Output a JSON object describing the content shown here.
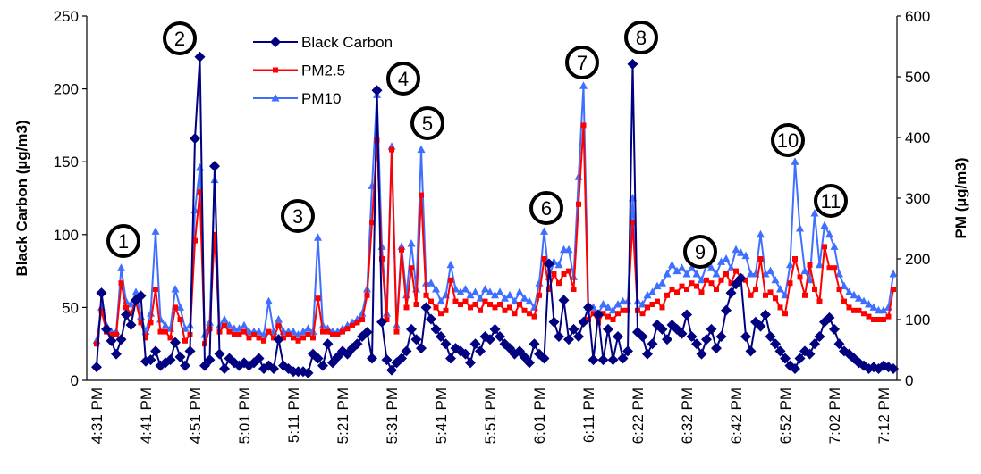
{
  "chart_data": {
    "type": "line",
    "y_label": "Black Carbon (µg/m3)",
    "y2_label": "PM (µg/m3)",
    "ylim": [
      0,
      250
    ],
    "yticks": [
      0,
      50,
      100,
      150,
      200,
      250
    ],
    "y2lim": [
      0,
      600
    ],
    "y2ticks": [
      0,
      100,
      200,
      300,
      400,
      500,
      600
    ],
    "legend": "top-center",
    "annotations": [
      "1",
      "2",
      "3",
      "4",
      "5",
      "6",
      "7",
      "8",
      "9",
      "10",
      "11"
    ],
    "categories": [
      "4:31 PM",
      null,
      null,
      null,
      null,
      null,
      null,
      null,
      null,
      null,
      "4:41 PM",
      null,
      null,
      null,
      null,
      null,
      null,
      null,
      null,
      null,
      "4:51 PM",
      null,
      null,
      null,
      null,
      null,
      null,
      null,
      null,
      null,
      "5:01 PM",
      null,
      null,
      null,
      null,
      null,
      null,
      null,
      null,
      null,
      "5:11 PM",
      null,
      null,
      null,
      null,
      null,
      null,
      null,
      null,
      null,
      "5:21 PM",
      null,
      null,
      null,
      null,
      null,
      null,
      null,
      null,
      null,
      "5:31 PM",
      null,
      null,
      null,
      null,
      null,
      null,
      null,
      null,
      null,
      "5:41 PM",
      null,
      null,
      null,
      null,
      null,
      null,
      null,
      null,
      null,
      "5:51 PM",
      null,
      null,
      null,
      null,
      null,
      null,
      null,
      null,
      null,
      "6:01 PM",
      null,
      null,
      null,
      null,
      null,
      null,
      null,
      null,
      null,
      "6:11 PM",
      null,
      null,
      null,
      null,
      null,
      null,
      null,
      null,
      null,
      "6:22 PM",
      null,
      null,
      null,
      null,
      null,
      null,
      null,
      null,
      null,
      "6:32 PM",
      null,
      null,
      null,
      null,
      null,
      null,
      null,
      null,
      null,
      "6:42 PM",
      null,
      null,
      null,
      null,
      null,
      null,
      null,
      null,
      null,
      "6:52 PM",
      null,
      null,
      null,
      null,
      null,
      null,
      null,
      null,
      null,
      "7:02 PM",
      null,
      null,
      null,
      null,
      null,
      null,
      null,
      null,
      null,
      "7:12 PM",
      null,
      null
    ],
    "series": [
      {
        "name": "Black Carbon",
        "color": "#000080",
        "marker": "diamond",
        "axis": "y",
        "values": [
          9,
          60,
          35,
          27,
          18,
          28,
          45,
          38,
          55,
          58,
          13,
          14,
          20,
          10,
          12,
          14,
          26,
          16,
          10,
          20,
          166,
          222,
          10,
          14,
          147,
          18,
          8,
          15,
          12,
          10,
          12,
          10,
          12,
          15,
          8,
          10,
          8,
          28,
          10,
          8,
          6,
          6,
          6,
          5,
          18,
          15,
          10,
          25,
          12,
          16,
          20,
          18,
          22,
          25,
          30,
          33,
          15,
          199,
          40,
          14,
          7,
          12,
          15,
          20,
          35,
          28,
          22,
          50,
          42,
          35,
          30,
          25,
          15,
          22,
          20,
          18,
          12,
          25,
          20,
          30,
          28,
          35,
          30,
          25,
          22,
          18,
          20,
          16,
          12,
          25,
          18,
          15,
          80,
          40,
          30,
          55,
          28,
          35,
          30,
          40,
          50,
          14,
          45,
          14,
          35,
          14,
          30,
          15,
          20,
          217,
          33,
          30,
          18,
          25,
          38,
          35,
          28,
          38,
          35,
          32,
          45,
          30,
          25,
          18,
          28,
          35,
          22,
          30,
          48,
          60,
          66,
          70,
          30,
          20,
          40,
          37,
          45,
          30,
          25,
          20,
          15,
          10,
          8,
          15,
          20,
          18,
          25,
          30,
          40,
          43,
          35,
          25,
          20,
          18,
          15,
          12,
          10,
          8,
          9,
          8,
          10,
          9,
          8
        ]
      },
      {
        "name": "PM2.5",
        "color": "#ff0000",
        "marker": "square",
        "axis": "y2",
        "values": [
          60,
          115,
          80,
          75,
          75,
          160,
          120,
          110,
          130,
          95,
          70,
          95,
          150,
          80,
          80,
          70,
          120,
          100,
          65,
          75,
          230,
          310,
          60,
          85,
          240,
          80,
          90,
          80,
          75,
          75,
          80,
          70,
          75,
          70,
          65,
          80,
          70,
          90,
          70,
          75,
          70,
          65,
          70,
          75,
          70,
          135,
          80,
          80,
          75,
          75,
          80,
          85,
          90,
          95,
          100,
          140,
          260,
          395,
          200,
          100,
          380,
          80,
          215,
          120,
          185,
          125,
          305,
          140,
          130,
          120,
          110,
          115,
          165,
          130,
          125,
          130,
          120,
          125,
          115,
          130,
          125,
          120,
          125,
          115,
          120,
          110,
          125,
          115,
          110,
          105,
          140,
          200,
          150,
          175,
          160,
          175,
          180,
          150,
          290,
          420,
          100,
          110,
          95,
          110,
          105,
          100,
          110,
          115,
          115,
          260,
          115,
          110,
          120,
          125,
          130,
          120,
          140,
          150,
          145,
          155,
          150,
          160,
          155,
          145,
          165,
          160,
          150,
          165,
          175,
          160,
          180,
          170,
          165,
          140,
          150,
          200,
          140,
          145,
          135,
          120,
          110,
          160,
          200,
          170,
          140,
          190,
          150,
          130,
          220,
          185,
          185,
          150,
          130,
          120,
          115,
          115,
          110,
          105,
          100,
          100,
          100,
          105,
          150
        ]
      },
      {
        "name": "PM10",
        "color": "#3f6fff",
        "marker": "triangle",
        "axis": "y2",
        "values": [
          65,
          120,
          90,
          80,
          80,
          185,
          130,
          125,
          145,
          105,
          80,
          110,
          245,
          100,
          90,
          85,
          150,
          120,
          85,
          90,
          280,
          350,
          75,
          95,
          330,
          90,
          100,
          90,
          85,
          85,
          90,
          80,
          80,
          80,
          75,
          130,
          80,
          100,
          80,
          80,
          80,
          75,
          80,
          85,
          80,
          235,
          90,
          85,
          80,
          80,
          85,
          90,
          95,
          100,
          110,
          150,
          320,
          470,
          220,
          110,
          385,
          90,
          220,
          140,
          225,
          150,
          380,
          160,
          160,
          150,
          130,
          140,
          190,
          150,
          145,
          150,
          140,
          145,
          135,
          150,
          145,
          140,
          145,
          135,
          140,
          130,
          145,
          135,
          130,
          120,
          160,
          245,
          170,
          195,
          190,
          215,
          215,
          170,
          335,
          485,
          120,
          120,
          110,
          125,
          120,
          115,
          125,
          130,
          130,
          300,
          130,
          125,
          140,
          145,
          155,
          160,
          175,
          190,
          180,
          185,
          175,
          185,
          175,
          165,
          190,
          185,
          175,
          195,
          200,
          185,
          215,
          210,
          205,
          175,
          175,
          240,
          175,
          180,
          165,
          150,
          140,
          190,
          360,
          250,
          180,
          165,
          275,
          190,
          255,
          240,
          220,
          175,
          155,
          145,
          140,
          135,
          130,
          125,
          120,
          115,
          115,
          120,
          175
        ]
      }
    ]
  }
}
